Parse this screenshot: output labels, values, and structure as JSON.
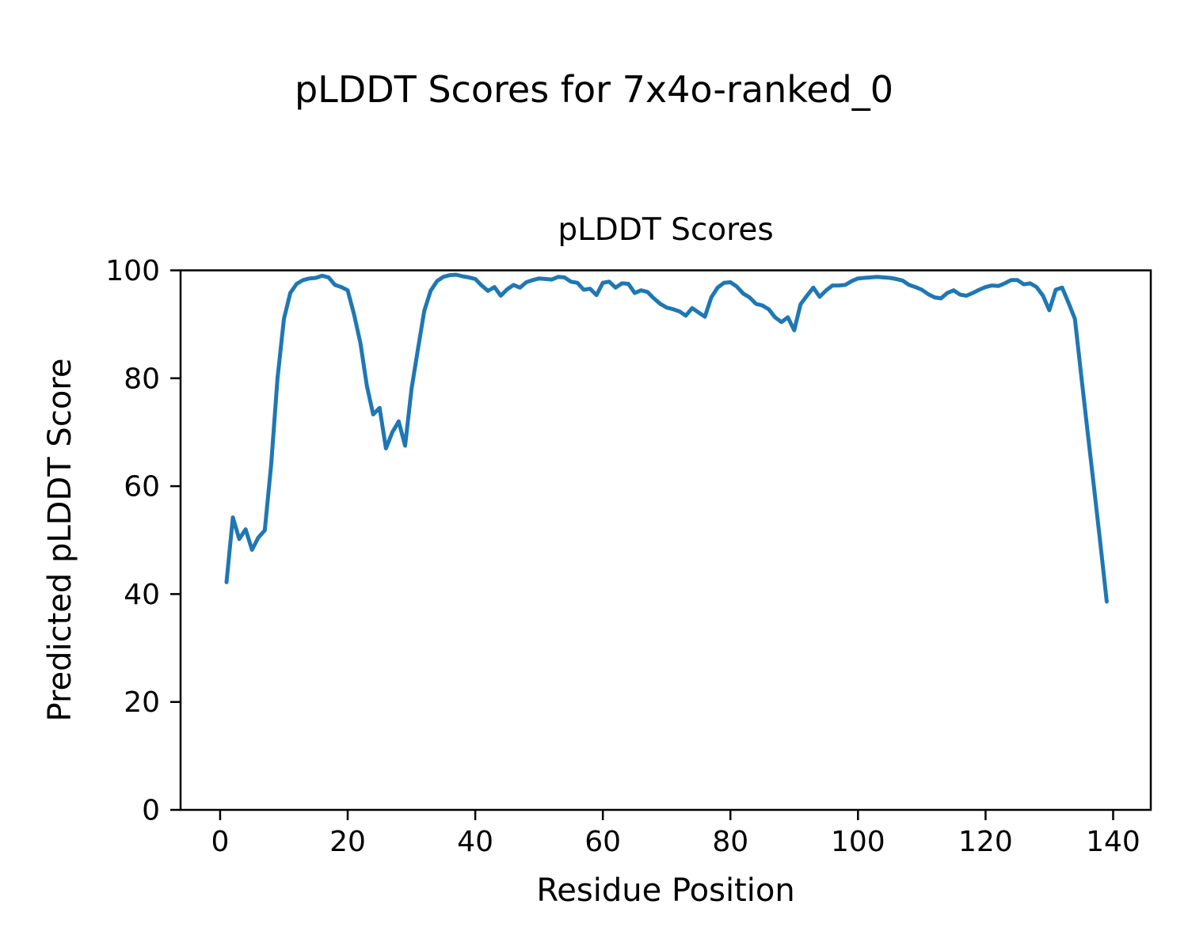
{
  "figure": {
    "suptitle": "pLDDT Scores for 7x4o-ranked_0",
    "axes_title": "pLDDT Scores",
    "xlabel": "Residue Position",
    "ylabel": "Predicted pLDDT Score"
  },
  "chart_data": {
    "type": "line",
    "title": "pLDDT Scores",
    "suptitle": "pLDDT Scores for 7x4o-ranked_0",
    "xlabel": "Residue Position",
    "ylabel": "Predicted pLDDT Score",
    "xlim": [
      -6.2,
      145.9
    ],
    "ylim": [
      0,
      100
    ],
    "xticks": [
      0,
      20,
      40,
      60,
      80,
      100,
      120,
      140
    ],
    "yticks": [
      0,
      20,
      40,
      60,
      80,
      100
    ],
    "grid": false,
    "legend": "none",
    "line_color": "#1f77b4",
    "line_width": 5,
    "x": [
      1,
      2,
      3,
      4,
      5,
      6,
      7,
      8,
      9,
      10,
      11,
      12,
      13,
      14,
      15,
      16,
      17,
      18,
      19,
      20,
      21,
      22,
      23,
      24,
      25,
      26,
      27,
      28,
      29,
      30,
      31,
      32,
      33,
      34,
      35,
      36,
      37,
      38,
      39,
      40,
      41,
      42,
      43,
      44,
      45,
      46,
      47,
      48,
      49,
      50,
      51,
      52,
      53,
      54,
      55,
      56,
      57,
      58,
      59,
      60,
      61,
      62,
      63,
      64,
      65,
      66,
      67,
      68,
      69,
      70,
      71,
      72,
      73,
      74,
      75,
      76,
      77,
      78,
      79,
      80,
      81,
      82,
      83,
      84,
      85,
      86,
      87,
      88,
      89,
      90,
      91,
      92,
      93,
      94,
      95,
      96,
      97,
      98,
      99,
      100,
      101,
      102,
      103,
      104,
      105,
      106,
      107,
      108,
      109,
      110,
      111,
      112,
      113,
      114,
      115,
      116,
      117,
      118,
      119,
      120,
      121,
      122,
      123,
      124,
      125,
      126,
      127,
      128,
      129,
      130,
      131,
      132,
      133,
      134,
      135,
      136,
      137,
      138,
      139
    ],
    "values": [
      42.2,
      54.2,
      50.2,
      52.0,
      48.2,
      50.5,
      51.8,
      64.0,
      80.0,
      91.0,
      95.8,
      97.5,
      98.2,
      98.5,
      98.6,
      99.0,
      98.7,
      97.3,
      96.9,
      96.3,
      91.8,
      86.5,
      78.6,
      73.3,
      74.5,
      67.0,
      70.0,
      72.0,
      67.5,
      78.0,
      85.3,
      92.5,
      96.2,
      98.0,
      98.8,
      99.1,
      99.2,
      98.9,
      98.7,
      98.4,
      97.2,
      96.2,
      96.9,
      95.3,
      96.5,
      97.3,
      96.8,
      97.8,
      98.2,
      98.5,
      98.4,
      98.3,
      98.8,
      98.7,
      97.9,
      97.7,
      96.4,
      96.6,
      95.4,
      97.7,
      97.9,
      96.8,
      97.6,
      97.5,
      95.8,
      96.3,
      96.0,
      94.8,
      93.8,
      93.1,
      92.8,
      92.4,
      91.6,
      93.0,
      92.2,
      91.4,
      95.0,
      96.8,
      97.7,
      97.8,
      97.0,
      95.7,
      95.0,
      93.8,
      93.5,
      92.8,
      91.3,
      90.4,
      91.3,
      88.9,
      93.7,
      95.3,
      96.8,
      95.1,
      96.3,
      97.2,
      97.2,
      97.3,
      98.0,
      98.5,
      98.6,
      98.7,
      98.8,
      98.7,
      98.6,
      98.4,
      98.1,
      97.3,
      96.9,
      96.4,
      95.6,
      95.0,
      94.8,
      95.8,
      96.3,
      95.5,
      95.3,
      95.8,
      96.4,
      96.9,
      97.2,
      97.1,
      97.6,
      98.2,
      98.2,
      97.4,
      97.6,
      96.9,
      95.3,
      92.6,
      96.4,
      96.8,
      94.0,
      91.0,
      80.5,
      70.0,
      59.8,
      49.3,
      38.6
    ]
  }
}
